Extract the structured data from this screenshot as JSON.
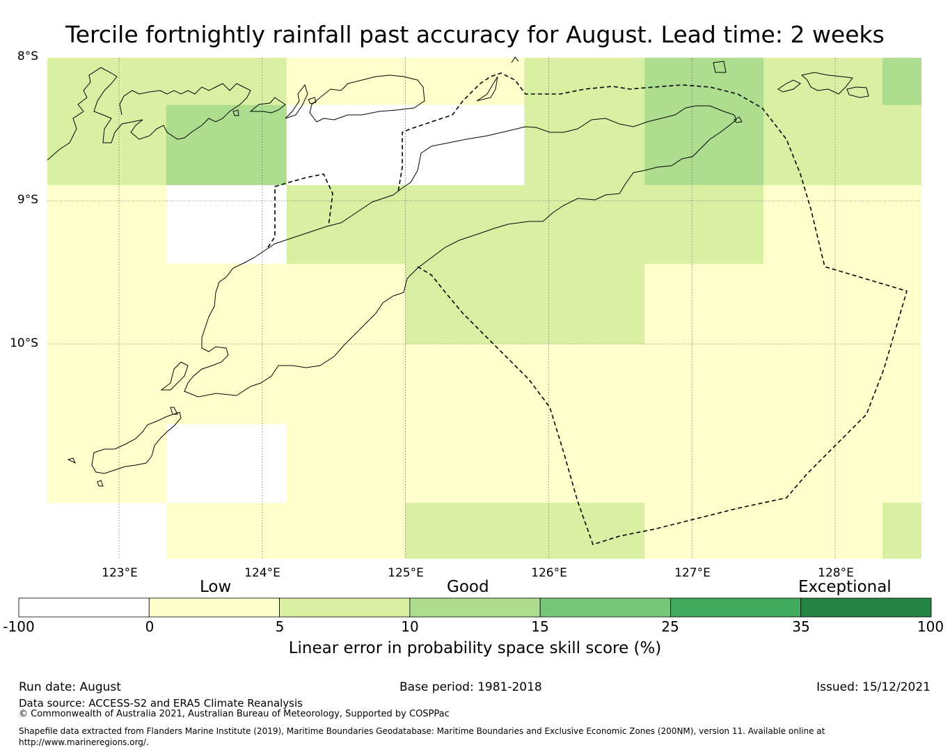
{
  "title": "Tercile fortnightly rainfall past accuracy for August. Lead time: 2 weeks",
  "map": {
    "lat_labels": [
      "8°S",
      "9°S",
      "10°S"
    ],
    "lon_labels": [
      "123°E",
      "124°E",
      "125°E",
      "126°E",
      "127°E",
      "128°E"
    ],
    "lat_values": [
      -8,
      -9,
      -10
    ],
    "lon_values": [
      123,
      124,
      125,
      126,
      127,
      128
    ],
    "extent": {
      "lon_min": 122.5,
      "lon_max": 128.6,
      "lat_min": -10.5,
      "lat_max": -8.0
    },
    "grid_cells": {
      "lon_edges": [
        122.5,
        123.33,
        124.17,
        125.0,
        125.83,
        126.67,
        127.5,
        128.33,
        128.6
      ],
      "lat_edges": [
        -8.0,
        -8.33,
        -8.89,
        -9.44,
        -10.0,
        -10.56,
        -11.11,
        -11.5
      ],
      "value_classes": [
        [
          2,
          2,
          1,
          1,
          2,
          3,
          2,
          3
        ],
        [
          2,
          3,
          0,
          0,
          2,
          3,
          2,
          2
        ],
        [
          1,
          0,
          2,
          2,
          2,
          2,
          1,
          1
        ],
        [
          1,
          1,
          1,
          2,
          2,
          1,
          1,
          1
        ],
        [
          1,
          1,
          1,
          1,
          1,
          1,
          1,
          1
        ],
        [
          1,
          0,
          1,
          1,
          1,
          1,
          1,
          1
        ],
        [
          0,
          1,
          1,
          2,
          2,
          1,
          1,
          2
        ]
      ]
    }
  },
  "colorbar": {
    "title": "Linear error in probability space skill score (%)",
    "categories": [
      "Low",
      "Good",
      "Exceptional"
    ],
    "ticks": [
      "-100",
      "0",
      "5",
      "10",
      "15",
      "25",
      "35",
      "100"
    ],
    "colors": [
      "#ffffff",
      "#ffffcc",
      "#d9f0a3",
      "#addd8e",
      "#78c679",
      "#41ab5d",
      "#238443"
    ]
  },
  "footer": {
    "run_date": "Run date: August",
    "base_period": "Base period: 1981-2018",
    "issued": "Issued: 15/12/2021",
    "data_source": "Data source: ACCESS-S2 and ERA5 Climate Reanalysis",
    "copyright": "© Commonwealth of Australia 2021, Australian Bureau of Meteorology, Supported by COSPPac",
    "shapefile_1": "Shapefile data extracted from Flanders Marine Institute (2019), Maritime Boundaries Geodatabase: Maritime Boundaries and Exclusive Economic Zones (200NM), version 11. Available online at",
    "shapefile_2": "http://www.marineregions.org/."
  }
}
